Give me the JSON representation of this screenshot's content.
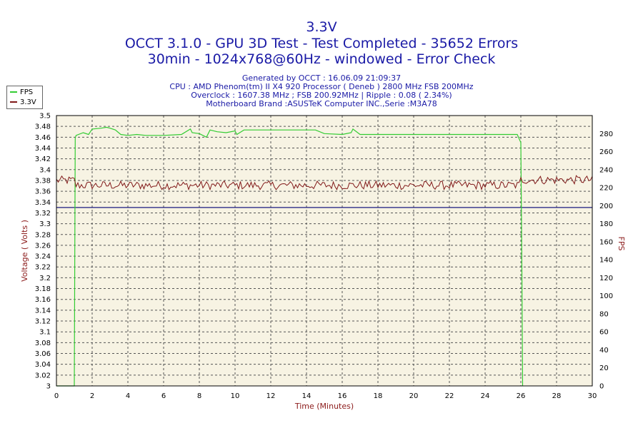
{
  "header": {
    "title": "3.3V",
    "line2": "OCCT 3.1.0 - GPU 3D Test - Test Completed - 35652 Errors",
    "line3": "30min - 1024x768@60Hz - windowed - Error Check",
    "info1": "Generated by OCCT : 16.06.09 21:09:37",
    "info2": "CPU : AMD Phenom(tm) II X4 920 Processor ( Deneb ) 2800 MHz FSB 200MHz",
    "info3": "Overclock : 1607.38 MHz ; FSB 200.92MHz | Ripple : 0.08 ( 2.34%)",
    "info4": "Motherboard Brand :ASUSTeK Computer INC.,Serie :M3A78"
  },
  "legend": {
    "fps_label": "FPS",
    "v_label": "3.3V"
  },
  "colors": {
    "fps": "#33cc33",
    "voltage": "#801818",
    "threshold": "#1a1a80",
    "plot_bg": "#f7f3e3",
    "grid": "#555555",
    "title": "#1a1aa6",
    "axis_title": "#8b1a1a"
  },
  "chart_data": {
    "type": "line",
    "xlabel": "Time (Minutes)",
    "ylabel_left": "Voltage ( Volts )",
    "ylabel_right": "FPS",
    "xlim": [
      0,
      30
    ],
    "ylim_left": [
      3,
      3.5
    ],
    "ylim_right": [
      0,
      300
    ],
    "x_ticks": [
      0,
      2,
      4,
      6,
      8,
      10,
      12,
      14,
      16,
      18,
      20,
      22,
      24,
      26,
      28,
      30
    ],
    "y_left_ticks": [
      "3",
      "3.02",
      "3.04",
      "3.06",
      "3.08",
      "3.1",
      "3.12",
      "3.14",
      "3.16",
      "3.18",
      "3.2",
      "3.22",
      "3.24",
      "3.26",
      "3.28",
      "3.3",
      "3.32",
      "3.34",
      "3.36",
      "3.38",
      "3.4",
      "3.42",
      "3.44",
      "3.46",
      "3.48",
      "3.5"
    ],
    "y_right_ticks": [
      0,
      20,
      40,
      60,
      80,
      100,
      120,
      140,
      160,
      180,
      200,
      220,
      240,
      260,
      280
    ],
    "grid": true,
    "legend_position": "top-left",
    "threshold_line": 3.33,
    "series": [
      {
        "name": "FPS",
        "axis": "right",
        "x": [
          0,
          1.0,
          1.05,
          1.1,
          1.5,
          1.8,
          2.0,
          2.5,
          2.8,
          3.0,
          3.3,
          3.6,
          4.0,
          4.5,
          5.0,
          6.0,
          7.0,
          7.5,
          7.6,
          8.0,
          8.4,
          8.6,
          9.0,
          9.5,
          10.0,
          10.1,
          10.5,
          12.0,
          14.0,
          14.5,
          15.0,
          16.0,
          16.5,
          16.6,
          17.0,
          18.0,
          20.0,
          22.0,
          24.0,
          25.0,
          25.8,
          26.0,
          26.05,
          26.1
        ],
        "y": [
          0,
          0,
          275,
          278,
          281,
          279,
          285,
          286,
          287,
          286,
          284,
          279,
          278,
          279,
          278,
          278,
          279,
          285,
          281,
          280,
          276,
          284,
          282,
          281,
          283,
          279,
          284,
          284,
          284,
          284,
          280,
          279,
          281,
          285,
          279,
          279,
          279,
          279,
          279,
          279,
          279,
          270,
          150,
          0
        ]
      },
      {
        "name": "3.3V",
        "axis": "left",
        "x_range": [
          0,
          30
        ],
        "x_step": 0.1,
        "mean_by_segment": [
          {
            "from": 0,
            "to": 1,
            "mean": 3.38
          },
          {
            "from": 1,
            "to": 26,
            "mean": 3.371
          },
          {
            "from": 26,
            "to": 30,
            "mean": 3.381
          }
        ],
        "ripple": 0.016,
        "min": 3.35,
        "max": 3.41
      }
    ]
  }
}
